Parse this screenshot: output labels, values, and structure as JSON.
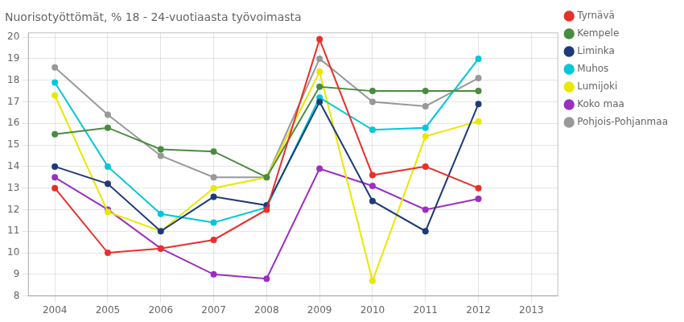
{
  "chart_data": {
    "type": "line",
    "title": "Nuorisotyöttömät, % 18 - 24-vuotiaasta työvoimasta",
    "x": [
      2004,
      2005,
      2006,
      2007,
      2008,
      2009,
      2010,
      2011,
      2012
    ],
    "series": [
      {
        "name": "Tyrnävä",
        "color": "#e8302a",
        "values": [
          13.0,
          10.0,
          10.2,
          10.6,
          12.0,
          19.9,
          13.6,
          14.0,
          13.0
        ]
      },
      {
        "name": "Kempele",
        "color": "#4a8c3f",
        "values": [
          15.5,
          15.8,
          14.8,
          14.7,
          13.5,
          17.7,
          17.5,
          17.5,
          17.5
        ]
      },
      {
        "name": "Liminka",
        "color": "#1f3a7a",
        "values": [
          14.0,
          13.2,
          11.0,
          12.6,
          12.2,
          17.0,
          12.4,
          11.0,
          16.9
        ]
      },
      {
        "name": "Muhos",
        "color": "#00c8d8",
        "values": [
          17.9,
          14.0,
          11.8,
          11.4,
          12.1,
          17.2,
          15.7,
          15.8,
          19.0
        ]
      },
      {
        "name": "Lumijoki",
        "color": "#e8e800",
        "values": [
          17.3,
          11.9,
          11.0,
          13.0,
          13.5,
          18.4,
          8.7,
          15.4,
          16.1
        ]
      },
      {
        "name": "Koko maa",
        "color": "#9b30c0",
        "values": [
          13.5,
          12.0,
          10.2,
          9.0,
          8.8,
          13.9,
          13.1,
          12.0,
          12.5
        ]
      },
      {
        "name": "Pohjois-Pohjanmaa",
        "color": "#999999",
        "values": [
          18.6,
          16.4,
          14.5,
          13.5,
          13.5,
          19.0,
          17.0,
          16.8,
          18.1
        ]
      }
    ],
    "xlim": [
      2003.5,
      2013.5
    ],
    "xticks": [
      2004,
      2005,
      2006,
      2007,
      2008,
      2009,
      2010,
      2011,
      2012,
      2013
    ],
    "ylim": [
      8,
      20.2
    ],
    "yticks": [
      8,
      9,
      10,
      11,
      12,
      13,
      14,
      15,
      16,
      17,
      18,
      19,
      20
    ],
    "grid": true,
    "legend": "right",
    "marker": "circle"
  }
}
